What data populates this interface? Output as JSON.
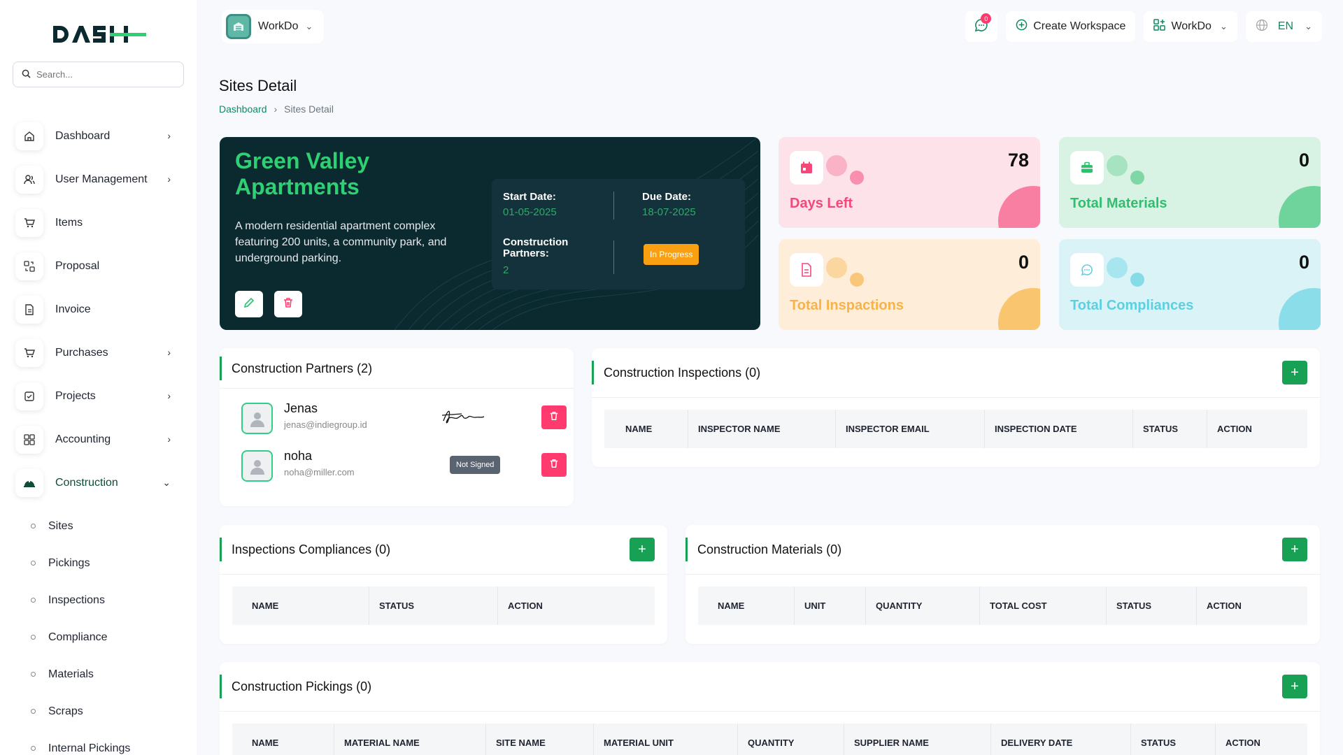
{
  "brand": {
    "logo_text": "DASH"
  },
  "search": {
    "placeholder": "Search..."
  },
  "sidebar": {
    "items": [
      {
        "label": "Dashboard",
        "icon": "home-icon"
      },
      {
        "label": "User Management",
        "icon": "users-icon"
      },
      {
        "label": "Items",
        "icon": "cart-icon"
      },
      {
        "label": "Proposal",
        "icon": "swap-icon"
      },
      {
        "label": "Invoice",
        "icon": "file-icon"
      },
      {
        "label": "Purchases",
        "icon": "cart-icon"
      },
      {
        "label": "Projects",
        "icon": "checklist-icon"
      },
      {
        "label": "Accounting",
        "icon": "grid-icon"
      },
      {
        "label": "Construction",
        "icon": "construction-icon"
      }
    ],
    "sub_items": [
      "Sites",
      "Pickings",
      "Inspections",
      "Compliance",
      "Materials",
      "Scraps",
      "Internal Pickings"
    ]
  },
  "header": {
    "workspace": "WorkDo",
    "notif_count": "0",
    "create_workspace": "Create Workspace",
    "workspace2": "WorkDo",
    "lang": "EN"
  },
  "page": {
    "title": "Sites Detail",
    "breadcrumb": {
      "home": "Dashboard",
      "current": "Sites Detail"
    }
  },
  "site": {
    "name": "Green Valley Apartments",
    "description": "A modern residential apartment complex featuring 200 units, a community park, and underground parking.",
    "start_label": "Start Date:",
    "start_value": "01-05-2025",
    "due_label": "Due Date:",
    "due_value": "18-07-2025",
    "partners_label": "Construction Partners:",
    "partners_value": "2",
    "status": "In Progress"
  },
  "stats": {
    "days_left": {
      "value": "78",
      "label": "Days Left",
      "color": "#f4477a"
    },
    "materials": {
      "value": "0",
      "label": "Total Materials",
      "color": "#2fbf6f"
    },
    "inspections": {
      "value": "0",
      "label": "Total Inspactions",
      "color": "#f7b24a"
    },
    "compliances": {
      "value": "0",
      "label": "Total Compliances",
      "color": "#5dcfe0"
    }
  },
  "partners_card": {
    "title": "Construction Partners (2)",
    "partners": [
      {
        "name": "Jenas",
        "email": "jenas@indiegroup.id",
        "signed": true
      },
      {
        "name": "noha",
        "email": "noha@miller.com",
        "signed": false,
        "sign_status": "Not Signed"
      }
    ]
  },
  "inspections_card": {
    "title": "Construction Inspections (0)",
    "columns": [
      "NAME",
      "INSPECTOR NAME",
      "INSPECTOR EMAIL",
      "INSPECTION DATE",
      "STATUS",
      "ACTION"
    ]
  },
  "compliances_card": {
    "title": "Inspections Compliances (0)",
    "columns": [
      "NAME",
      "STATUS",
      "ACTION"
    ]
  },
  "materials_card": {
    "title": "Construction Materials (0)",
    "columns": [
      "NAME",
      "UNIT",
      "QUANTITY",
      "TOTAL COST",
      "STATUS",
      "ACTION"
    ]
  },
  "pickings_card": {
    "title": "Construction Pickings (0)",
    "columns": [
      "NAME",
      "MATERIAL NAME",
      "SITE NAME",
      "MATERIAL UNIT",
      "QUANTITY",
      "SUPPLIER NAME",
      "DELIVERY DATE",
      "STATUS",
      "ACTION"
    ]
  }
}
